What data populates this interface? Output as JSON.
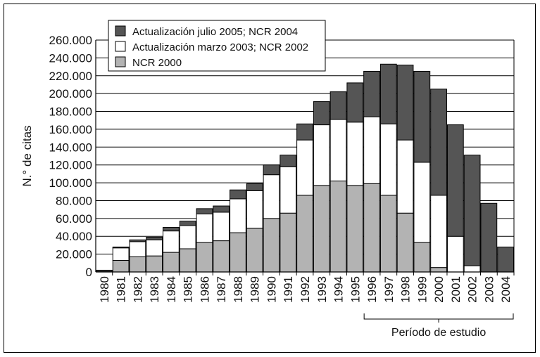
{
  "chart_data": {
    "type": "bar",
    "stacked": true,
    "ylabel": "N.° de citas",
    "ylim": [
      0,
      260000
    ],
    "yticks": [
      0,
      20000,
      40000,
      60000,
      80000,
      100000,
      120000,
      140000,
      160000,
      180000,
      200000,
      220000,
      240000,
      260000
    ],
    "ytick_labels": [
      "0",
      "20.000",
      "40.000",
      "60.000",
      "80.000",
      "100.000",
      "120.000",
      "140.000",
      "160.000",
      "180.000",
      "200.000",
      "220.000",
      "240.000",
      "260.000"
    ],
    "grid": "horizontal",
    "legend_position": "top-left",
    "categories": [
      "1980",
      "1981",
      "1982",
      "1983",
      "1984",
      "1985",
      "1986",
      "1987",
      "1988",
      "1989",
      "1990",
      "1991",
      "1992",
      "1993",
      "1994",
      "1995",
      "1996",
      "1997",
      "1998",
      "1999",
      "2000",
      "2001",
      "2002",
      "2003",
      "2004"
    ],
    "series": [
      {
        "name": "NCR 2000",
        "color": "#b3b3b3",
        "values": [
          1000,
          13000,
          17000,
          18000,
          22000,
          26000,
          33000,
          35000,
          44000,
          49000,
          60000,
          66000,
          86000,
          97000,
          102000,
          97000,
          99000,
          86000,
          66000,
          33000,
          5000,
          0,
          0,
          0,
          0
        ]
      },
      {
        "name": "Actualización marzo 2003; NCR 2002",
        "color": "#ffffff",
        "values": [
          1000,
          14000,
          17000,
          18000,
          24000,
          26000,
          32000,
          32000,
          38000,
          42000,
          49000,
          52000,
          62000,
          68000,
          69000,
          71000,
          75000,
          80000,
          82000,
          90000,
          81000,
          40000,
          7000,
          0,
          0
        ]
      },
      {
        "name": "Actualización julio 2005; NCR 2004",
        "color": "#555555",
        "values": [
          0,
          1000,
          2000,
          3000,
          4000,
          5000,
          6000,
          7000,
          10000,
          8000,
          11000,
          13000,
          18000,
          26000,
          31000,
          44000,
          51000,
          67000,
          84000,
          102000,
          119000,
          125000,
          124000,
          77000,
          28000
        ]
      }
    ],
    "legend_order": [
      "Actualización julio 2005; NCR 2004",
      "Actualización marzo 2003; NCR 2002",
      "NCR 2000"
    ],
    "annotation": {
      "text": "Período de estudio",
      "from_category": "1996",
      "to_category": "2004"
    }
  }
}
